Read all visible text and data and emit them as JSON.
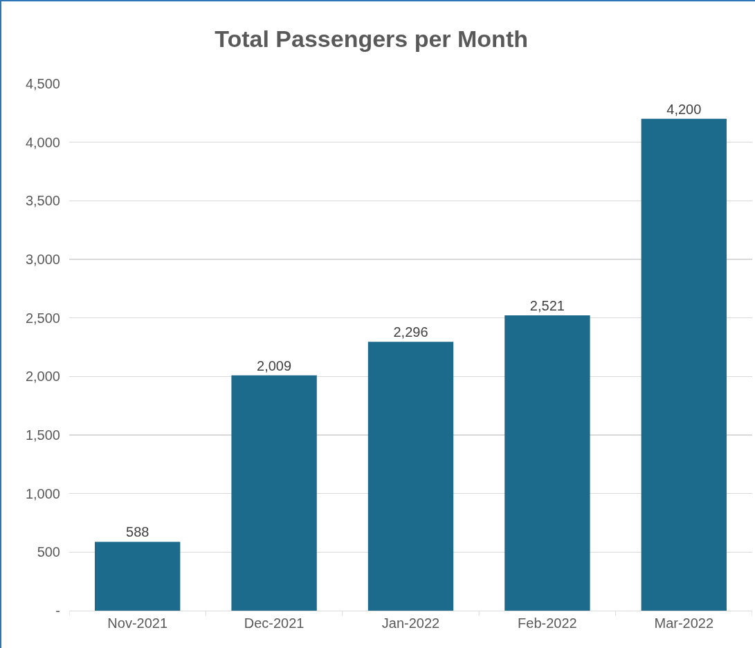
{
  "chart_data": {
    "type": "bar",
    "title": "Total Passengers per Month",
    "categories": [
      "Nov-2021",
      "Dec-2021",
      "Jan-2022",
      "Feb-2022",
      "Mar-2022"
    ],
    "values": [
      588,
      2009,
      2296,
      2521,
      4200
    ],
    "value_labels": [
      "588",
      "2,009",
      "2,296",
      "2,521",
      "4,200"
    ],
    "color": "#1c6a8c",
    "ylim": [
      0,
      4500
    ],
    "yticks": [
      {
        "value": 0,
        "label": "-"
      },
      {
        "value": 500,
        "label": "500"
      },
      {
        "value": 1000,
        "label": "1,000"
      },
      {
        "value": 1500,
        "label": "1,500"
      },
      {
        "value": 2000,
        "label": "2,000"
      },
      {
        "value": 2500,
        "label": "2,500"
      },
      {
        "value": 3000,
        "label": "3,000"
      },
      {
        "value": 3500,
        "label": "3,500"
      },
      {
        "value": 4000,
        "label": "4,000"
      },
      {
        "value": 4500,
        "label": "4,500"
      }
    ],
    "grid": "y",
    "legend": false
  }
}
